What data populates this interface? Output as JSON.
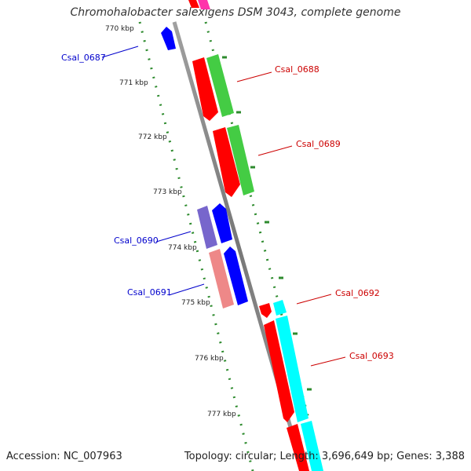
{
  "title": "Chromohalobacter salexigens DSM 3043, complete genome",
  "footer": {
    "accession": "Accession: NC_007963",
    "stats": "Topology: circular; Length: 3,696,649 bp; Genes: 3,388"
  },
  "scale": {
    "unit": "kbp",
    "ticks": [
      "770 kbp",
      "771 kbp",
      "772 kbp",
      "773 kbp",
      "774 kbp",
      "775 kbp",
      "776 kbp",
      "777 kbp"
    ]
  },
  "genes": [
    {
      "id": "Csal_0687",
      "strand": "reverse",
      "label_color": "#0000cc"
    },
    {
      "id": "Csal_0688",
      "strand": "forward",
      "label_color": "#cc0000"
    },
    {
      "id": "Csal_0689",
      "strand": "forward",
      "label_color": "#cc0000"
    },
    {
      "id": "Csal_0690",
      "strand": "reverse",
      "label_color": "#0000cc"
    },
    {
      "id": "Csal_0691",
      "strand": "reverse",
      "label_color": "#0000cc"
    },
    {
      "id": "Csal_0692",
      "strand": "forward",
      "label_color": "#cc0000"
    },
    {
      "id": "Csal_0693",
      "strand": "forward",
      "label_color": "#cc0000"
    }
  ],
  "colors": {
    "backbone": "#888888",
    "tick_dots": "#2e8b2e",
    "forward_gene": "#ff0000",
    "reverse_gene": "#0000ff",
    "cog_green": "#44cc44",
    "cog_purple": "#7766cc",
    "cog_pink": "#ee8888",
    "cog_cyan": "#00ffff",
    "cog_magenta": "#ff33aa"
  }
}
